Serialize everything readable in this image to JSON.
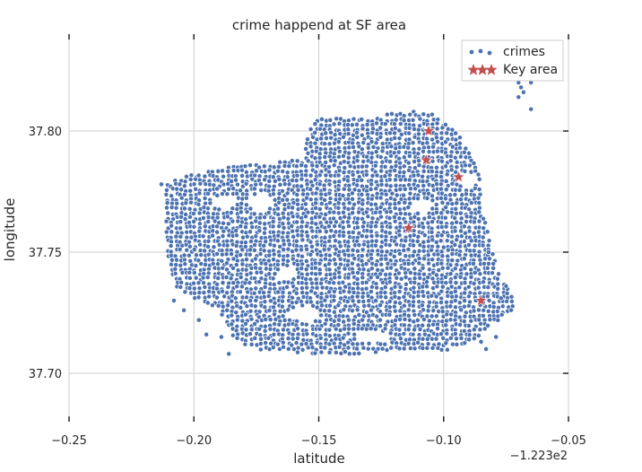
{
  "chart_data": {
    "type": "scatter",
    "title": "crime happend at SF area",
    "xlabel": "latitude",
    "ylabel": "longitude",
    "x_offset_label": "−1.223e2",
    "xlim": [
      -0.25,
      -0.05
    ],
    "ylim": [
      37.68,
      37.84
    ],
    "grid": true,
    "legend_position": "top-right",
    "x_ticks": [
      {
        "value": -0.25,
        "label": "−0.25"
      },
      {
        "value": -0.2,
        "label": "−0.20"
      },
      {
        "value": -0.15,
        "label": "−0.15"
      },
      {
        "value": -0.1,
        "label": "−0.10"
      },
      {
        "value": -0.05,
        "label": "−0.05"
      }
    ],
    "y_ticks": [
      {
        "value": 37.7,
        "label": "37.70"
      },
      {
        "value": 37.75,
        "label": "37.75"
      },
      {
        "value": 37.8,
        "label": "37.80"
      }
    ],
    "series": [
      {
        "name": "crimes",
        "marker": "circle",
        "color": "#4c72b0",
        "region_polygon": [
          [
            -0.2115,
            37.778
          ],
          [
            -0.208,
            37.781
          ],
          [
            -0.2,
            37.782
          ],
          [
            -0.19,
            37.785
          ],
          [
            -0.18,
            37.786
          ],
          [
            -0.17,
            37.787
          ],
          [
            -0.162,
            37.788
          ],
          [
            -0.156,
            37.789
          ],
          [
            -0.155,
            37.795
          ],
          [
            -0.154,
            37.801
          ],
          [
            -0.151,
            37.805
          ],
          [
            -0.14,
            37.806
          ],
          [
            -0.13,
            37.805
          ],
          [
            -0.122,
            37.807
          ],
          [
            -0.113,
            37.808
          ],
          [
            -0.105,
            37.808
          ],
          [
            -0.1,
            37.804
          ],
          [
            -0.094,
            37.798
          ],
          [
            -0.089,
            37.792
          ],
          [
            -0.086,
            37.785
          ],
          [
            -0.085,
            37.775
          ],
          [
            -0.084,
            37.765
          ],
          [
            -0.081,
            37.755
          ],
          [
            -0.079,
            37.745
          ],
          [
            -0.076,
            37.738
          ],
          [
            -0.072,
            37.732
          ],
          [
            -0.071,
            37.727
          ],
          [
            -0.076,
            37.724
          ],
          [
            -0.08,
            37.72
          ],
          [
            -0.085,
            37.716
          ],
          [
            -0.09,
            37.712
          ],
          [
            -0.095,
            37.71
          ],
          [
            -0.105,
            37.709
          ],
          [
            -0.12,
            37.709
          ],
          [
            -0.135,
            37.708
          ],
          [
            -0.15,
            37.708
          ],
          [
            -0.165,
            37.709
          ],
          [
            -0.175,
            37.71
          ],
          [
            -0.183,
            37.713
          ],
          [
            -0.187,
            37.72
          ],
          [
            -0.19,
            37.727
          ],
          [
            -0.2,
            37.731
          ],
          [
            -0.208,
            37.735
          ],
          [
            -0.21,
            37.745
          ],
          [
            -0.211,
            37.755
          ],
          [
            -0.2115,
            37.765
          ],
          [
            -0.211,
            37.772
          ]
        ],
        "sample_points": [
          [
            -0.069,
            37.818
          ],
          [
            -0.068,
            37.816
          ],
          [
            -0.07,
            37.82
          ],
          [
            -0.065,
            37.82
          ],
          [
            -0.065,
            37.809
          ],
          [
            -0.07,
            37.814
          ],
          [
            -0.213,
            37.778
          ],
          [
            -0.208,
            37.73
          ],
          [
            -0.204,
            37.726
          ],
          [
            -0.198,
            37.722
          ],
          [
            -0.195,
            37.716
          ],
          [
            -0.189,
            37.715
          ],
          [
            -0.186,
            37.708
          ],
          [
            -0.085,
            37.713
          ],
          [
            -0.083,
            37.71
          ],
          [
            -0.079,
            37.715
          ],
          [
            -0.077,
            37.731
          ],
          [
            -0.075,
            37.736
          ],
          [
            -0.078,
            37.741
          ],
          [
            -0.082,
            37.75
          ]
        ]
      },
      {
        "name": "Key area",
        "marker": "star",
        "color": "#c44e52",
        "points": [
          [
            -0.106,
            37.8
          ],
          [
            -0.107,
            37.788
          ],
          [
            -0.094,
            37.781
          ],
          [
            -0.114,
            37.76
          ],
          [
            -0.085,
            37.73
          ]
        ]
      }
    ]
  }
}
